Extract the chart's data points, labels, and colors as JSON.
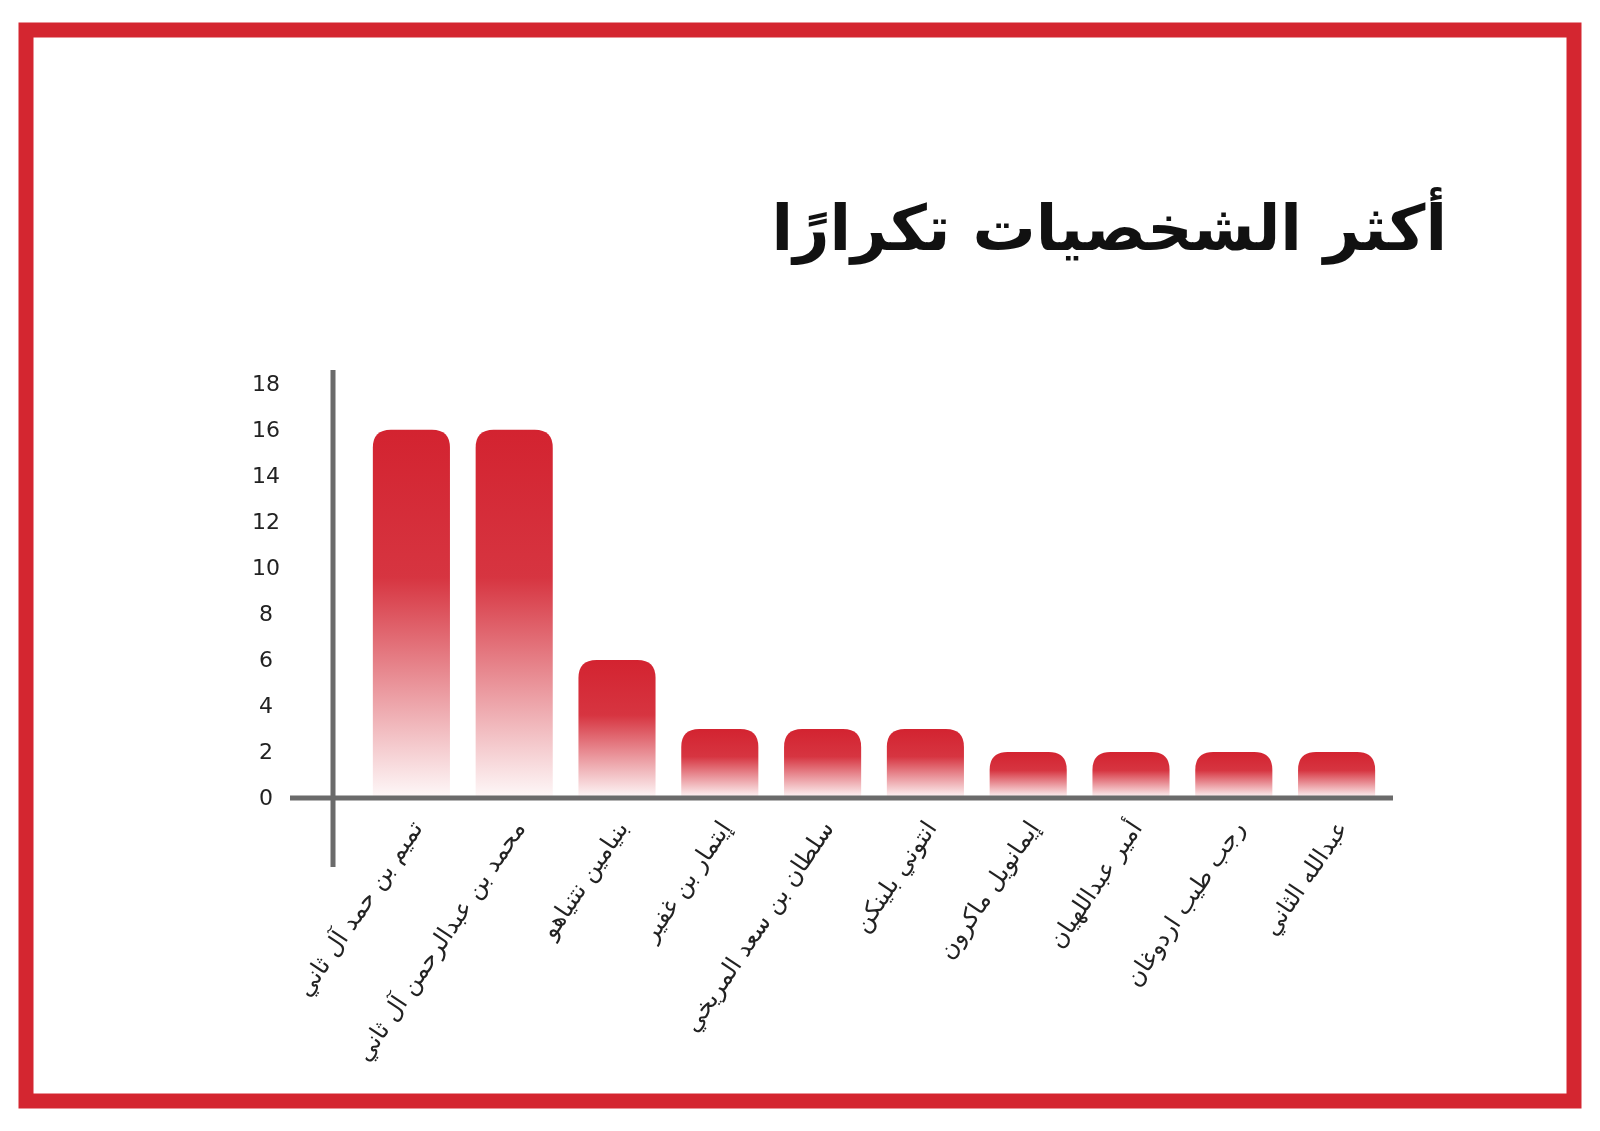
{
  "chart_data": {
    "type": "bar",
    "title": "أكثر الشخصيات تكرارًا",
    "categories": [
      "تميم بن حمد آل ثاني",
      "محمد بن عبدالرحمن آل ثاني",
      "بنيامين نتنياهو",
      "إيتمار بن غفير",
      "سلطان بن سعد المريخي",
      "انتوني بلينكن",
      "إيمانويل ماكرون",
      "أمير عبداللهيان",
      "رجب طيب اردوغان",
      "عبدالله الثاني"
    ],
    "values": [
      16,
      16,
      6,
      3,
      3,
      3,
      2,
      2,
      2,
      2
    ],
    "color": "#d32330",
    "ylim": [
      -3,
      18.6
    ],
    "yticks": [
      0,
      2,
      4,
      6,
      8,
      10,
      12,
      14,
      16,
      18
    ]
  }
}
